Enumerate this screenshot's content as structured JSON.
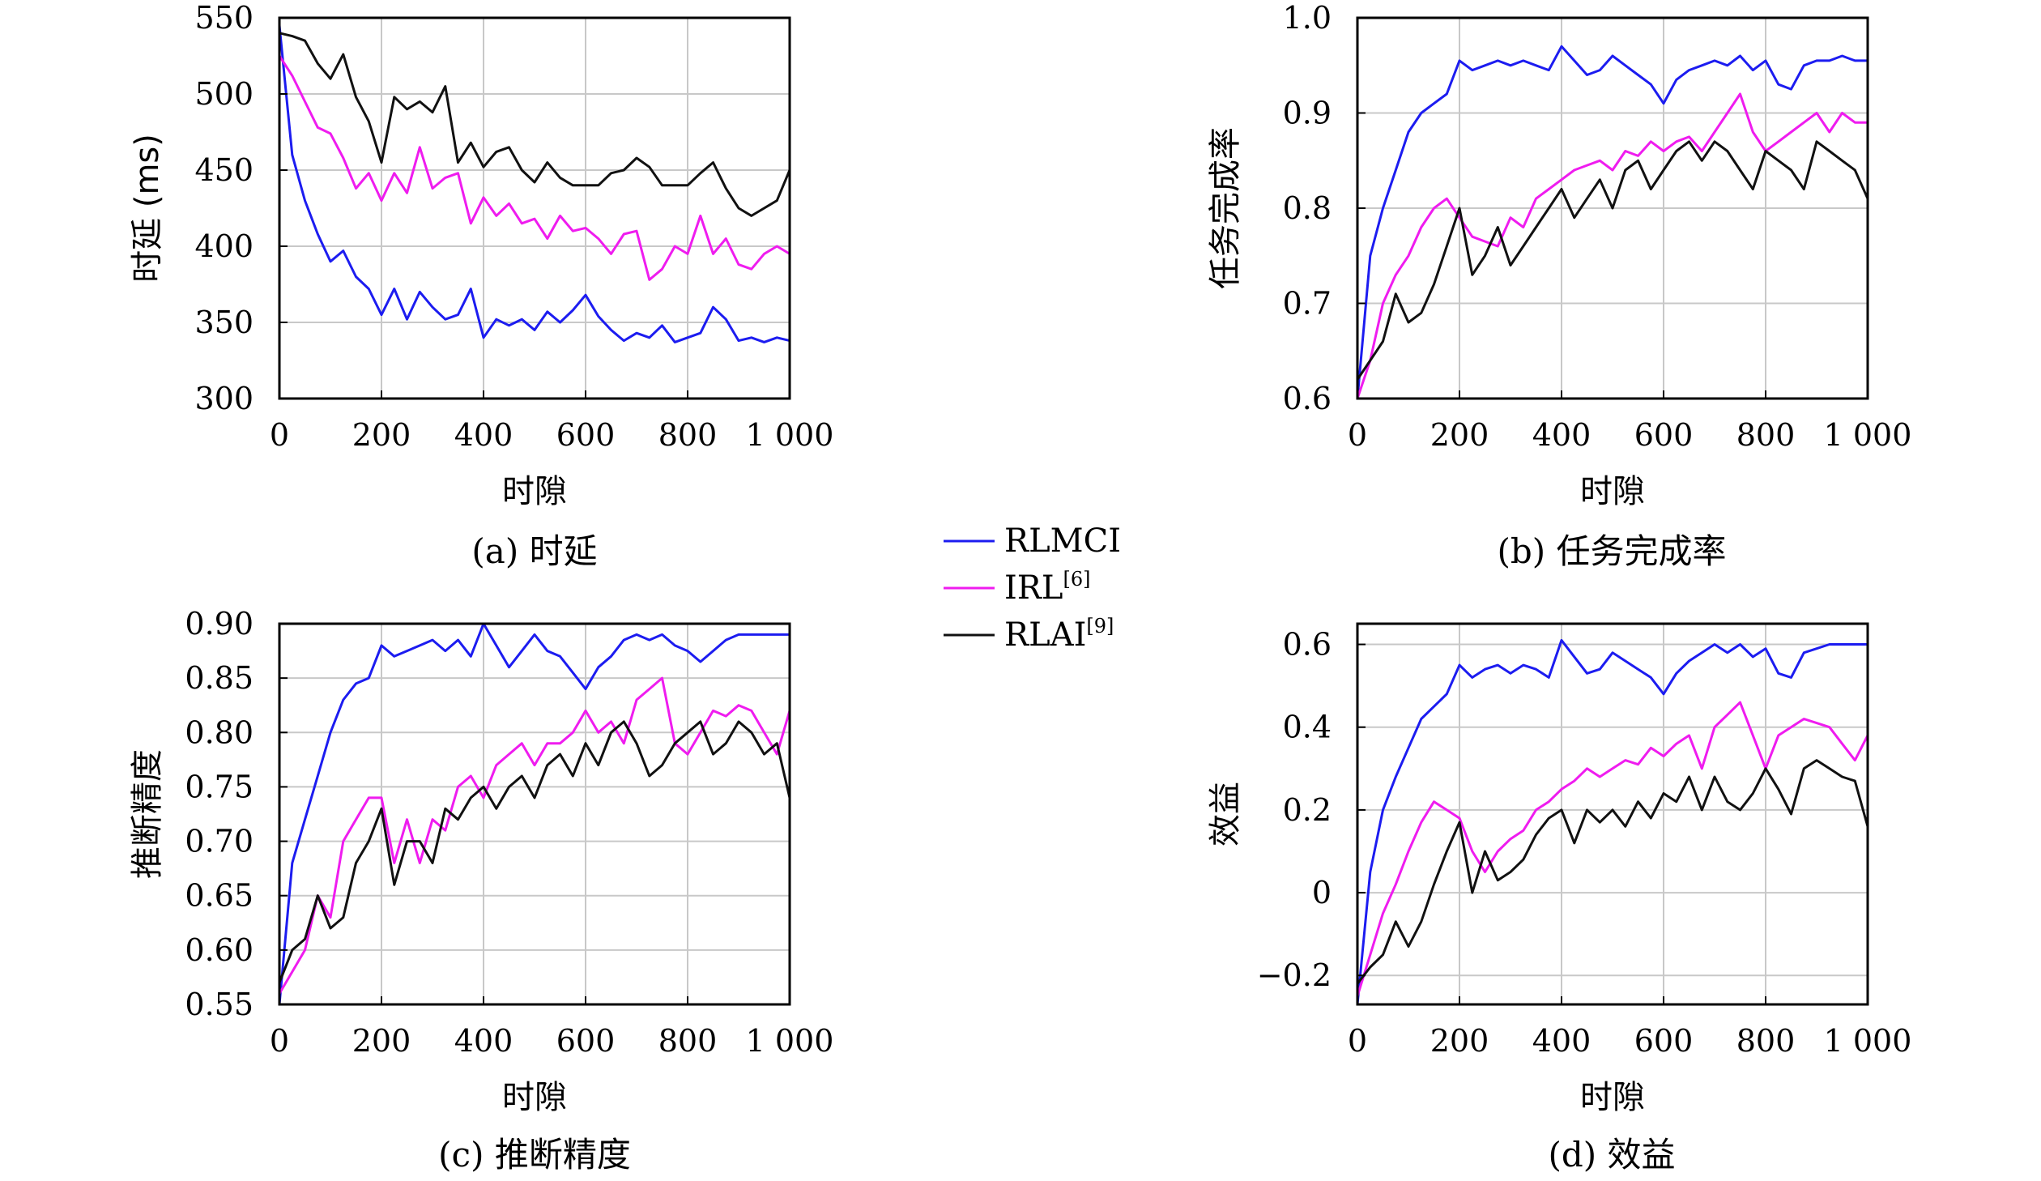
{
  "legend": [
    {
      "name": "RLMCI",
      "sup": "",
      "color": "#1c1cf0"
    },
    {
      "name": "IRL",
      "sup": "[6]",
      "color": "#ef1cef"
    },
    {
      "name": "RLAI",
      "sup": "[9]",
      "color": "#111111"
    }
  ],
  "chart_data": [
    {
      "type": "line",
      "caption": "(a) 时延",
      "xlabel": "时隙",
      "ylabel": "时延 (ms)",
      "xlim": [
        0,
        1000
      ],
      "ylim": [
        300,
        550
      ],
      "xticks": [
        0,
        200,
        400,
        600,
        800,
        1000
      ],
      "xtick_labels": [
        "0",
        "200",
        "400",
        "600",
        "800",
        "1 000"
      ],
      "yticks": [
        300,
        350,
        400,
        450,
        500,
        550
      ],
      "ytick_labels": [
        "300",
        "350",
        "400",
        "450",
        "500",
        "550"
      ],
      "grid": true,
      "x": [
        0,
        25,
        50,
        75,
        100,
        125,
        150,
        175,
        200,
        225,
        250,
        275,
        300,
        325,
        350,
        375,
        400,
        425,
        450,
        475,
        500,
        525,
        550,
        575,
        600,
        625,
        650,
        675,
        700,
        725,
        750,
        775,
        800,
        825,
        850,
        875,
        900,
        925,
        950,
        975,
        1000
      ],
      "series": [
        {
          "name": "RLMCI",
          "color": "#1c1cf0",
          "values": [
            545,
            460,
            430,
            408,
            390,
            397,
            380,
            372,
            355,
            372,
            352,
            370,
            360,
            352,
            355,
            372,
            340,
            352,
            348,
            352,
            345,
            357,
            350,
            358,
            368,
            354,
            345,
            338,
            343,
            340,
            348,
            337,
            340,
            343,
            360,
            352,
            338,
            340,
            337,
            340,
            338
          ]
        },
        {
          "name": "IRL",
          "color": "#ef1cef",
          "values": [
            525,
            512,
            495,
            478,
            474,
            458,
            438,
            448,
            430,
            448,
            435,
            465,
            438,
            445,
            448,
            415,
            432,
            420,
            428,
            415,
            418,
            405,
            420,
            410,
            412,
            405,
            395,
            408,
            410,
            378,
            385,
            400,
            395,
            420,
            395,
            405,
            388,
            385,
            395,
            400,
            395
          ]
        },
        {
          "name": "RLAI",
          "color": "#111111",
          "values": [
            540,
            538,
            535,
            520,
            510,
            526,
            498,
            482,
            455,
            498,
            490,
            495,
            488,
            505,
            455,
            468,
            452,
            462,
            465,
            450,
            442,
            455,
            445,
            440,
            440,
            440,
            448,
            450,
            458,
            452,
            440,
            440,
            440,
            448,
            455,
            438,
            425,
            420,
            425,
            430,
            450
          ]
        }
      ]
    },
    {
      "type": "line",
      "caption": "(b) 任务完成率",
      "xlabel": "时隙",
      "ylabel": "任务完成率",
      "xlim": [
        0,
        1000
      ],
      "ylim": [
        0.6,
        1.0
      ],
      "xticks": [
        0,
        200,
        400,
        600,
        800,
        1000
      ],
      "xtick_labels": [
        "0",
        "200",
        "400",
        "600",
        "800",
        "1 000"
      ],
      "yticks": [
        0.6,
        0.7,
        0.8,
        0.9,
        1.0
      ],
      "ytick_labels": [
        "0.6",
        "0.7",
        "0.8",
        "0.9",
        "1.0"
      ],
      "grid": true,
      "x": [
        0,
        25,
        50,
        75,
        100,
        125,
        150,
        175,
        200,
        225,
        250,
        275,
        300,
        325,
        350,
        375,
        400,
        425,
        450,
        475,
        500,
        525,
        550,
        575,
        600,
        625,
        650,
        675,
        700,
        725,
        750,
        775,
        800,
        825,
        850,
        875,
        900,
        925,
        950,
        975,
        1000
      ],
      "series": [
        {
          "name": "RLMCI",
          "color": "#1c1cf0",
          "values": [
            0.6,
            0.75,
            0.8,
            0.84,
            0.88,
            0.9,
            0.91,
            0.92,
            0.955,
            0.945,
            0.95,
            0.955,
            0.95,
            0.955,
            0.95,
            0.945,
            0.97,
            0.955,
            0.94,
            0.945,
            0.96,
            0.95,
            0.94,
            0.93,
            0.91,
            0.935,
            0.945,
            0.95,
            0.955,
            0.95,
            0.96,
            0.945,
            0.955,
            0.93,
            0.925,
            0.95,
            0.955,
            0.955,
            0.96,
            0.955,
            0.955
          ]
        },
        {
          "name": "IRL",
          "color": "#ef1cef",
          "values": [
            0.6,
            0.64,
            0.7,
            0.73,
            0.75,
            0.78,
            0.8,
            0.81,
            0.79,
            0.77,
            0.765,
            0.76,
            0.79,
            0.78,
            0.81,
            0.82,
            0.83,
            0.84,
            0.845,
            0.85,
            0.84,
            0.86,
            0.855,
            0.87,
            0.86,
            0.87,
            0.875,
            0.86,
            0.88,
            0.9,
            0.92,
            0.88,
            0.86,
            0.87,
            0.88,
            0.89,
            0.9,
            0.88,
            0.9,
            0.89,
            0.89
          ]
        },
        {
          "name": "RLAI",
          "color": "#111111",
          "values": [
            0.62,
            0.64,
            0.66,
            0.71,
            0.68,
            0.69,
            0.72,
            0.76,
            0.8,
            0.73,
            0.75,
            0.78,
            0.74,
            0.76,
            0.78,
            0.8,
            0.82,
            0.79,
            0.81,
            0.83,
            0.8,
            0.84,
            0.85,
            0.82,
            0.84,
            0.86,
            0.87,
            0.85,
            0.87,
            0.86,
            0.84,
            0.82,
            0.86,
            0.85,
            0.84,
            0.82,
            0.87,
            0.86,
            0.85,
            0.84,
            0.81
          ]
        }
      ]
    },
    {
      "type": "line",
      "caption": "(c) 推断精度",
      "xlabel": "时隙",
      "ylabel": "推断精度",
      "xlim": [
        0,
        1000
      ],
      "ylim": [
        0.55,
        0.9
      ],
      "xticks": [
        0,
        200,
        400,
        600,
        800,
        1000
      ],
      "xtick_labels": [
        "0",
        "200",
        "400",
        "600",
        "800",
        "1 000"
      ],
      "yticks": [
        0.55,
        0.6,
        0.65,
        0.7,
        0.75,
        0.8,
        0.85,
        0.9
      ],
      "ytick_labels": [
        "0.55",
        "0.60",
        "0.65",
        "0.70",
        "0.75",
        "0.80",
        "0.85",
        "0.90"
      ],
      "grid": true,
      "x": [
        0,
        25,
        50,
        75,
        100,
        125,
        150,
        175,
        200,
        225,
        250,
        275,
        300,
        325,
        350,
        375,
        400,
        425,
        450,
        475,
        500,
        525,
        550,
        575,
        600,
        625,
        650,
        675,
        700,
        725,
        750,
        775,
        800,
        825,
        850,
        875,
        900,
        925,
        950,
        975,
        1000
      ],
      "series": [
        {
          "name": "RLMCI",
          "color": "#1c1cf0",
          "values": [
            0.55,
            0.68,
            0.72,
            0.76,
            0.8,
            0.83,
            0.845,
            0.85,
            0.88,
            0.87,
            0.875,
            0.88,
            0.885,
            0.875,
            0.885,
            0.87,
            0.9,
            0.88,
            0.86,
            0.875,
            0.89,
            0.875,
            0.87,
            0.855,
            0.84,
            0.86,
            0.87,
            0.885,
            0.89,
            0.885,
            0.89,
            0.88,
            0.875,
            0.865,
            0.875,
            0.885,
            0.89,
            0.89,
            0.89,
            0.89,
            0.89
          ]
        },
        {
          "name": "IRL",
          "color": "#ef1cef",
          "values": [
            0.56,
            0.58,
            0.6,
            0.65,
            0.63,
            0.7,
            0.72,
            0.74,
            0.74,
            0.68,
            0.72,
            0.68,
            0.72,
            0.71,
            0.75,
            0.76,
            0.74,
            0.77,
            0.78,
            0.79,
            0.77,
            0.79,
            0.79,
            0.8,
            0.82,
            0.8,
            0.81,
            0.79,
            0.83,
            0.84,
            0.85,
            0.79,
            0.78,
            0.8,
            0.82,
            0.815,
            0.825,
            0.82,
            0.8,
            0.78,
            0.82
          ]
        },
        {
          "name": "RLAI",
          "color": "#111111",
          "values": [
            0.57,
            0.6,
            0.61,
            0.65,
            0.62,
            0.63,
            0.68,
            0.7,
            0.73,
            0.66,
            0.7,
            0.7,
            0.68,
            0.73,
            0.72,
            0.74,
            0.75,
            0.73,
            0.75,
            0.76,
            0.74,
            0.77,
            0.78,
            0.76,
            0.79,
            0.77,
            0.8,
            0.81,
            0.79,
            0.76,
            0.77,
            0.79,
            0.8,
            0.81,
            0.78,
            0.79,
            0.81,
            0.8,
            0.78,
            0.79,
            0.74
          ]
        }
      ]
    },
    {
      "type": "line",
      "caption": "(d) 效益",
      "xlabel": "时隙",
      "ylabel": "效益",
      "xlim": [
        0,
        1000
      ],
      "ylim": [
        -0.27,
        0.65
      ],
      "xticks": [
        0,
        200,
        400,
        600,
        800,
        1000
      ],
      "xtick_labels": [
        "0",
        "200",
        "400",
        "600",
        "800",
        "1 000"
      ],
      "yticks": [
        -0.2,
        0,
        0.2,
        0.4,
        0.6
      ],
      "ytick_labels": [
        "−0.2",
        "0",
        "0.2",
        "0.4",
        "0.6"
      ],
      "grid": true,
      "x": [
        0,
        25,
        50,
        75,
        100,
        125,
        150,
        175,
        200,
        225,
        250,
        275,
        300,
        325,
        350,
        375,
        400,
        425,
        450,
        475,
        500,
        525,
        550,
        575,
        600,
        625,
        650,
        675,
        700,
        725,
        750,
        775,
        800,
        825,
        850,
        875,
        900,
        925,
        950,
        975,
        1000
      ],
      "series": [
        {
          "name": "RLMCI",
          "color": "#1c1cf0",
          "values": [
            -0.27,
            0.05,
            0.2,
            0.28,
            0.35,
            0.42,
            0.45,
            0.48,
            0.55,
            0.52,
            0.54,
            0.55,
            0.53,
            0.55,
            0.54,
            0.52,
            0.61,
            0.57,
            0.53,
            0.54,
            0.58,
            0.56,
            0.54,
            0.52,
            0.48,
            0.53,
            0.56,
            0.58,
            0.6,
            0.58,
            0.6,
            0.57,
            0.59,
            0.53,
            0.52,
            0.58,
            0.59,
            0.6,
            0.6,
            0.6,
            0.6
          ]
        },
        {
          "name": "IRL",
          "color": "#ef1cef",
          "values": [
            -0.25,
            -0.15,
            -0.05,
            0.02,
            0.1,
            0.17,
            0.22,
            0.2,
            0.18,
            0.1,
            0.05,
            0.1,
            0.13,
            0.15,
            0.2,
            0.22,
            0.25,
            0.27,
            0.3,
            0.28,
            0.3,
            0.32,
            0.31,
            0.35,
            0.33,
            0.36,
            0.38,
            0.3,
            0.4,
            0.43,
            0.46,
            0.38,
            0.3,
            0.38,
            0.4,
            0.42,
            0.41,
            0.4,
            0.36,
            0.32,
            0.38
          ]
        },
        {
          "name": "RLAI",
          "color": "#111111",
          "values": [
            -0.22,
            -0.18,
            -0.15,
            -0.07,
            -0.13,
            -0.07,
            0.02,
            0.1,
            0.17,
            0.0,
            0.1,
            0.03,
            0.05,
            0.08,
            0.14,
            0.18,
            0.2,
            0.12,
            0.2,
            0.17,
            0.2,
            0.16,
            0.22,
            0.18,
            0.24,
            0.22,
            0.28,
            0.2,
            0.28,
            0.22,
            0.2,
            0.24,
            0.3,
            0.25,
            0.19,
            0.3,
            0.32,
            0.3,
            0.28,
            0.27,
            0.16
          ]
        }
      ]
    }
  ]
}
